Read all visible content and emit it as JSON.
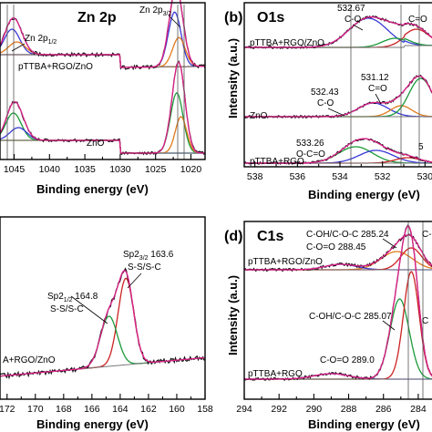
{
  "panels": [
    {
      "id": "a",
      "label": "",
      "title": "Zn 2p",
      "xlabel": "Binding energy (eV)",
      "ylabel": "",
      "xlim": [
        1047,
        1018
      ],
      "xticks": [
        "1045",
        "1040",
        "1035",
        "1030",
        "1025",
        "1020"
      ],
      "series": [
        "pTTBA+RGO/ZnO",
        "ZnO"
      ],
      "annotations": [
        "Zn 2p1/2",
        "Zn 2p3/2"
      ]
    },
    {
      "id": "b",
      "label": "(b)",
      "title": "O1s",
      "xlabel": "Binding energy (eV)",
      "ylabel": "Intensity (a.u.)",
      "xlim": [
        538.5,
        529.5
      ],
      "xticks": [
        "538",
        "536",
        "534",
        "532",
        "530"
      ],
      "series": [
        "pTTBA+RGO/ZnO",
        "ZnO",
        "pTTBA+RGO"
      ],
      "annotations": [
        "532.67",
        "C-O",
        "C=O",
        "531.12",
        "C=O",
        "532.43",
        "C-O",
        "533.26",
        "O-C=O",
        "5"
      ]
    },
    {
      "id": "c",
      "label": "",
      "title": "",
      "xlabel": "Binding energy (eV)",
      "ylabel": "",
      "xlim": [
        172.5,
        158
      ],
      "xticks": [
        "172",
        "170",
        "168",
        "166",
        "164",
        "162",
        "160",
        "158"
      ],
      "series": [
        "A+RGO/ZnO"
      ],
      "annotations": [
        "Sp2 3/2 163.6",
        "S-S/S-C",
        "Sp2 1/2 164.8",
        "S-S/S-C"
      ]
    },
    {
      "id": "d",
      "label": "(d)",
      "title": "C1s",
      "xlabel": "Binding energy (eV)",
      "ylabel": "Intensity (a.u.)",
      "xlim": [
        294,
        283
      ],
      "xticks": [
        "294",
        "292",
        "290",
        "288",
        "286",
        "284"
      ],
      "series": [
        "pTTBA+RGO/ZnO",
        "pTTBA+RGO"
      ],
      "annotations": [
        "C-OH/C-O-C 285.24",
        "C-O=O 288.45",
        "C-",
        "C-OH/C-O-C 285.07",
        "C-O=O 289.0",
        "C"
      ]
    }
  ],
  "chart_data": [
    {
      "type": "line",
      "title": "Zn 2p",
      "xlabel": "Binding energy (eV)",
      "x_range": [
        1047,
        1018
      ],
      "series": [
        {
          "name": "pTTBA+RGO/ZnO",
          "peaks": [
            1045.0,
            1022.2
          ]
        },
        {
          "name": "ZnO",
          "peaks": [
            1045.0,
            1021.8
          ]
        }
      ]
    },
    {
      "type": "line",
      "title": "O1s",
      "xlabel": "Binding energy (eV)",
      "ylabel": "Intensity (a.u.)",
      "x_range": [
        538.5,
        529.5
      ],
      "series": [
        {
          "name": "pTTBA+RGO/ZnO",
          "peaks": [
            532.67,
            530.4
          ]
        },
        {
          "name": "ZnO",
          "peaks": [
            532.43,
            531.12,
            530.2
          ]
        },
        {
          "name": "pTTBA+RGO",
          "peaks": [
            533.26,
            532.2
          ]
        }
      ]
    },
    {
      "type": "line",
      "xlabel": "Binding energy (eV)",
      "x_range": [
        172.5,
        158
      ],
      "series": [
        {
          "name": "A+RGO/ZnO",
          "peaks": [
            163.6,
            164.8
          ]
        }
      ]
    },
    {
      "type": "line",
      "title": "C1s",
      "xlabel": "Binding energy (eV)",
      "ylabel": "Intensity (a.u.)",
      "x_range": [
        294,
        283
      ],
      "series": [
        {
          "name": "pTTBA+RGO/ZnO",
          "peaks": [
            285.24,
            288.45,
            284.5
          ]
        },
        {
          "name": "pTTBA+RGO",
          "peaks": [
            285.07,
            289.0,
            284.5
          ]
        }
      ]
    }
  ]
}
